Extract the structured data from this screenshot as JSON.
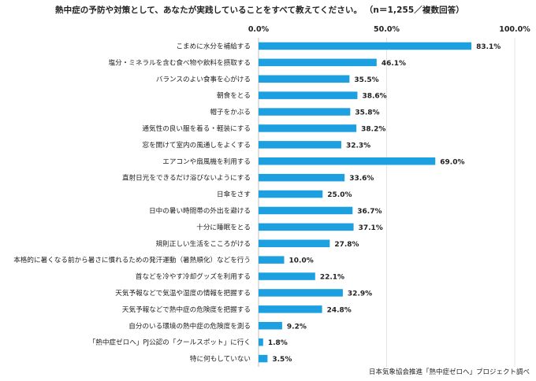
{
  "title": "熱中症の予防や対策として、あなたが実践していることをすべて教えてください。 （n＝1,255／複数回答）",
  "source": "日本気象協会推進「熱中症ゼロへ」プロジェクト調べ",
  "chart_data": {
    "type": "bar",
    "orientation": "horizontal",
    "title": "熱中症の予防や対策として、あなたが実践していることをすべて教えてください。 （n＝1,255／複数回答）",
    "xlim": [
      0,
      100
    ],
    "x_ticks": [
      "0.0%",
      "50.0%",
      "100.0%"
    ],
    "x_tick_values": [
      0,
      50,
      100
    ],
    "tick_position": "top",
    "grid": true,
    "bar_color": "#1da0e0",
    "categories": [
      "こまめに水分を補給する",
      "塩分・ミネラルを含む食べ物や飲料を摂取する",
      "バランスのよい食事を心がける",
      "朝食をとる",
      "帽子をかぶる",
      "通気性の良い服を着る・軽装にする",
      "窓を開けて室内の風通しをよくする",
      "エアコンや扇風機を利用する",
      "直射日光をできるだけ浴びないようにする",
      "日傘をさす",
      "日中の暑い時間帯の外出を避ける",
      "十分に睡眠をとる",
      "規則正しい生活をこころがける",
      "本格的に暑くなる前から暑さに慣れるための発汗運動（暑熱順化）などを行う",
      "首などを冷やす冷却グッズを利用する",
      "天気予報などで気温や湿度の情報を把握する",
      "天気予報などで熱中症の危険度を把握する",
      "自分のいる環境の熱中症の危険度を測る",
      "「熱中症ゼロへ」PJ公認の「クールスポット」に行く",
      "特に何もしていない"
    ],
    "values": [
      83.1,
      46.1,
      35.5,
      38.6,
      35.8,
      38.2,
      32.3,
      69.0,
      33.6,
      25.0,
      36.7,
      37.1,
      27.8,
      10.0,
      22.1,
      32.9,
      24.8,
      9.2,
      1.8,
      3.5
    ],
    "value_labels": [
      "83.1%",
      "46.1%",
      "35.5%",
      "38.6%",
      "35.8%",
      "38.2%",
      "32.3%",
      "69.0%",
      "33.6%",
      "25.0%",
      "36.7%",
      "37.1%",
      "27.8%",
      "10.0%",
      "22.1%",
      "32.9%",
      "24.8%",
      "9.2%",
      "1.8%",
      "3.5%"
    ]
  }
}
